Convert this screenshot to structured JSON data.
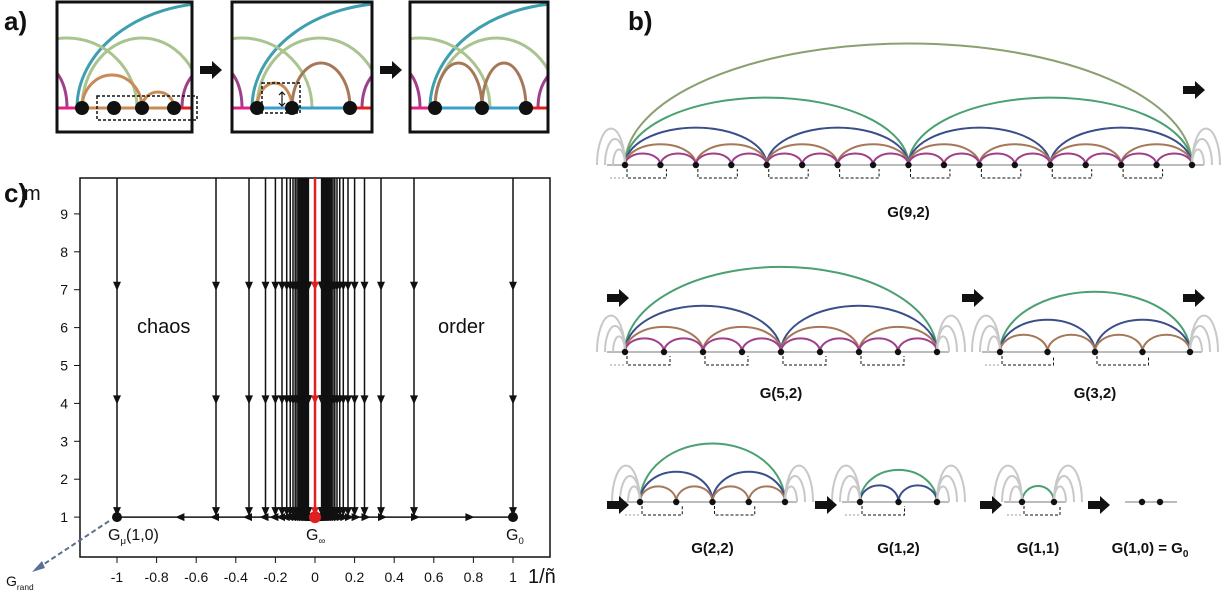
{
  "panel_labels": [
    "a)",
    "b)",
    "c)"
  ],
  "graphs": [
    {
      "label": "G(9,2)"
    },
    {
      "label": "G(5,2)"
    },
    {
      "label": "G(3,2)"
    },
    {
      "label": "G(2,2)"
    },
    {
      "label": "G(1,2)"
    },
    {
      "label": "G(1,1)"
    },
    {
      "label": "G(1,0) = G",
      "sub": "0"
    }
  ],
  "plot": {
    "y_label": "m",
    "x_label": "1/ñ",
    "xticks": [
      -1,
      -0.8,
      -0.6,
      -0.4,
      -0.2,
      0,
      0.2,
      0.4,
      0.6,
      0.8,
      1
    ],
    "yticks": [
      1,
      2,
      3,
      4,
      5,
      6,
      7,
      8,
      9
    ],
    "regions": [
      "chaos",
      "order"
    ],
    "points": [
      {
        "base": "G",
        "sub": "rand"
      },
      {
        "base": "G",
        "sub": "μ",
        "rest": "(1,0)"
      },
      {
        "base": "G",
        "sub": "∞"
      },
      {
        "base": "G",
        "sub": "0"
      }
    ]
  }
}
